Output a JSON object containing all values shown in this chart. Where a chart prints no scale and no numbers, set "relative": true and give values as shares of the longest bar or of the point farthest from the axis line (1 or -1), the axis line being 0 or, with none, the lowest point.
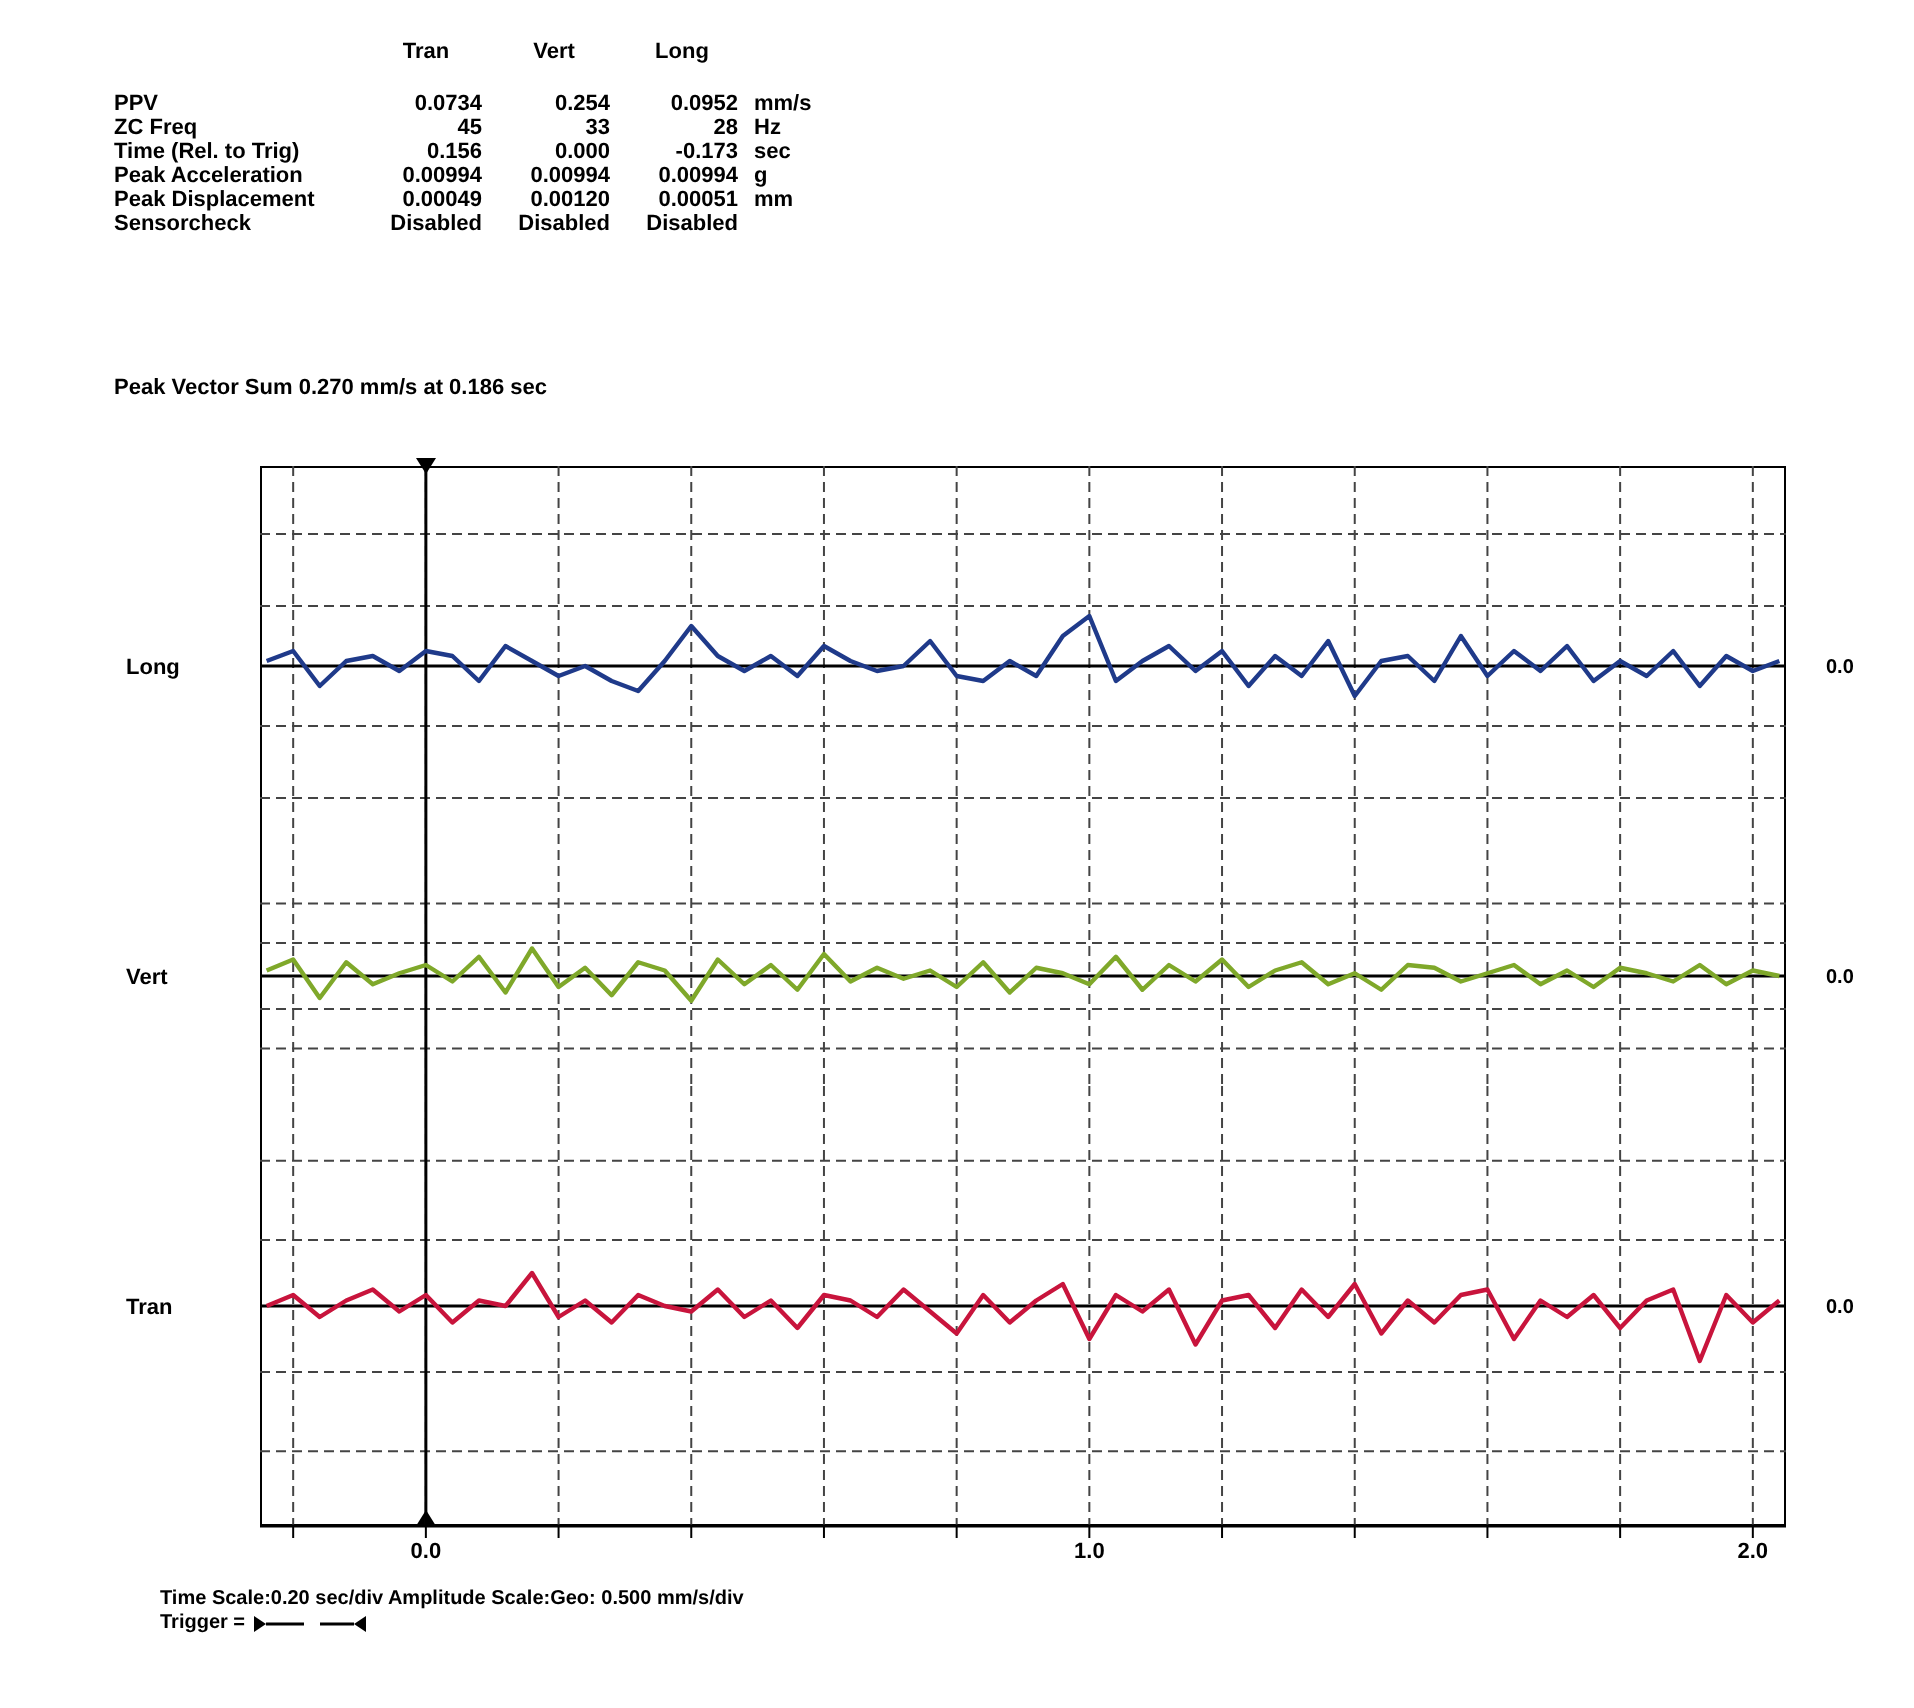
{
  "chart_data": [
    {
      "type": "other",
      "annotations": [
        "Tran",
        "Vert",
        "Long",
        "PPV",
        "0.0734",
        "0.254",
        "0.0952",
        "mm/s",
        "ZC Freq",
        "45",
        "33",
        "28",
        "Hz",
        "Time (Rel. to Trig)",
        "0.156",
        "0.000",
        "-0.173",
        "sec",
        "Peak Acceleration",
        "0.00994",
        "0.00994",
        "0.00994",
        "g",
        "Peak Displacement",
        "0.00049",
        "0.00120",
        "0.00051",
        "mm",
        "Sensorcheck",
        "Disabled",
        "Disabled",
        "Disabled",
        "Peak Vector Sum 0.270 mm/s at 0.186 sec"
      ]
    },
    {
      "type": "line",
      "relative": true,
      "ylabel": "Long",
      "tick_labels": false,
      "grid": true,
      "marker": "none",
      "line_style": "solid",
      "xlim": [
        -0.25,
        2.05
      ],
      "xticks": [
        -0.2,
        0,
        0.2,
        0.4,
        0.6,
        0.8,
        1,
        1.2,
        1.4,
        1.6,
        1.8,
        2
      ],
      "x": [
        -0.24,
        -0.2,
        -0.16,
        -0.12,
        -0.08,
        -0.04,
        0,
        0.04,
        0.08,
        0.12,
        0.16,
        0.2,
        0.24,
        0.28,
        0.32,
        0.36,
        0.4,
        0.44,
        0.48,
        0.52,
        0.56,
        0.6,
        0.64,
        0.68,
        0.72,
        0.76,
        0.8,
        0.84,
        0.88,
        0.92,
        0.96,
        1,
        1.04,
        1.08,
        1.12,
        1.16,
        1.2,
        1.24,
        1.28,
        1.32,
        1.36,
        1.4,
        1.44,
        1.48,
        1.52,
        1.56,
        1.6,
        1.64,
        1.68,
        1.72,
        1.76,
        1.8,
        1.84,
        1.88,
        1.92,
        1.96,
        2,
        2.04
      ],
      "series": [
        {
          "color": "#1f3a8a",
          "values": [
            0.1,
            0.3,
            -0.4,
            0.1,
            0.2,
            -0.1,
            0.3,
            0.2,
            -0.3,
            0.4,
            0.1,
            -0.2,
            0.0,
            -0.3,
            -0.5,
            0.1,
            0.8,
            0.2,
            -0.1,
            0.2,
            -0.2,
            0.4,
            0.1,
            -0.1,
            0.0,
            0.5,
            -0.2,
            -0.3,
            0.1,
            -0.2,
            0.6,
            1.0,
            -0.3,
            0.1,
            0.4,
            -0.1,
            0.3,
            -0.4,
            0.2,
            -0.2,
            0.5,
            -0.6,
            0.1,
            0.2,
            -0.3,
            0.6,
            -0.2,
            0.3,
            -0.1,
            0.4,
            -0.3,
            0.1,
            -0.2,
            0.3,
            -0.4,
            0.2,
            -0.1,
            0.1
          ]
        }
      ],
      "ref_lines": [
        {
          "axis": "y",
          "value": 0,
          "label": "0.0",
          "color": "#000000"
        },
        {
          "axis": "x",
          "value": 0,
          "color": "#000000"
        }
      ]
    },
    {
      "type": "line",
      "relative": true,
      "ylabel": "Vert",
      "tick_labels": false,
      "grid": true,
      "marker": "none",
      "line_style": "solid",
      "xlim": [
        -0.25,
        2.05
      ],
      "xticks": [
        -0.2,
        0,
        0.2,
        0.4,
        0.6,
        0.8,
        1,
        1.2,
        1.4,
        1.6,
        1.8,
        2
      ],
      "x": [
        -0.24,
        -0.2,
        -0.16,
        -0.12,
        -0.08,
        -0.04,
        0,
        0.04,
        0.08,
        0.12,
        0.16,
        0.2,
        0.24,
        0.28,
        0.32,
        0.36,
        0.4,
        0.44,
        0.48,
        0.52,
        0.56,
        0.6,
        0.64,
        0.68,
        0.72,
        0.76,
        0.8,
        0.84,
        0.88,
        0.92,
        0.96,
        1,
        1.04,
        1.08,
        1.12,
        1.16,
        1.2,
        1.24,
        1.28,
        1.32,
        1.36,
        1.4,
        1.44,
        1.48,
        1.52,
        1.56,
        1.6,
        1.64,
        1.68,
        1.72,
        1.76,
        1.8,
        1.84,
        1.88,
        1.92,
        1.96,
        2,
        2.04
      ],
      "series": [
        {
          "color": "#7fa82a",
          "values": [
            0.2,
            0.6,
            -0.8,
            0.5,
            -0.3,
            0.1,
            0.4,
            -0.2,
            0.7,
            -0.6,
            1.0,
            -0.4,
            0.3,
            -0.7,
            0.5,
            0.2,
            -0.9,
            0.6,
            -0.3,
            0.4,
            -0.5,
            0.8,
            -0.2,
            0.3,
            -0.1,
            0.2,
            -0.4,
            0.5,
            -0.6,
            0.3,
            0.1,
            -0.3,
            0.7,
            -0.5,
            0.4,
            -0.2,
            0.6,
            -0.4,
            0.2,
            0.5,
            -0.3,
            0.1,
            -0.5,
            0.4,
            0.3,
            -0.2,
            0.1,
            0.4,
            -0.3,
            0.2,
            -0.4,
            0.3,
            0.1,
            -0.2,
            0.4,
            -0.3,
            0.2,
            0.0
          ]
        }
      ],
      "ref_lines": [
        {
          "axis": "y",
          "value": 0,
          "label": "0.0",
          "color": "#000000"
        },
        {
          "axis": "x",
          "value": 0,
          "color": "#000000"
        }
      ]
    },
    {
      "type": "line",
      "relative": true,
      "ylabel": "Tran",
      "tick_labels": "x",
      "grid": true,
      "marker": "none",
      "line_style": "solid",
      "xlim": [
        -0.25,
        2.05
      ],
      "xticks": [
        {
          "value": -0.2,
          "label": null
        },
        {
          "value": 0,
          "label": "0.0"
        },
        {
          "value": 0.2,
          "label": null
        },
        {
          "value": 0.4,
          "label": null
        },
        {
          "value": 0.6,
          "label": null
        },
        {
          "value": 0.8,
          "label": null
        },
        {
          "value": 1,
          "label": "1.0"
        },
        {
          "value": 1.2,
          "label": null
        },
        {
          "value": 1.4,
          "label": null
        },
        {
          "value": 1.6,
          "label": null
        },
        {
          "value": 1.8,
          "label": null
        },
        {
          "value": 2,
          "label": "2.0"
        }
      ],
      "x": [
        -0.24,
        -0.2,
        -0.16,
        -0.12,
        -0.08,
        -0.04,
        0,
        0.04,
        0.08,
        0.12,
        0.16,
        0.2,
        0.24,
        0.28,
        0.32,
        0.36,
        0.4,
        0.44,
        0.48,
        0.52,
        0.56,
        0.6,
        0.64,
        0.68,
        0.72,
        0.76,
        0.8,
        0.84,
        0.88,
        0.92,
        0.96,
        1,
        1.04,
        1.08,
        1.12,
        1.16,
        1.2,
        1.24,
        1.28,
        1.32,
        1.36,
        1.4,
        1.44,
        1.48,
        1.52,
        1.56,
        1.6,
        1.64,
        1.68,
        1.72,
        1.76,
        1.8,
        1.84,
        1.88,
        1.92,
        1.96,
        2,
        2.04
      ],
      "series": [
        {
          "color": "#c8143c",
          "values": [
            0.0,
            0.2,
            -0.2,
            0.1,
            0.3,
            -0.1,
            0.2,
            -0.3,
            0.1,
            0.0,
            0.6,
            -0.2,
            0.1,
            -0.3,
            0.2,
            0.0,
            -0.1,
            0.3,
            -0.2,
            0.1,
            -0.4,
            0.2,
            0.1,
            -0.2,
            0.3,
            -0.1,
            -0.5,
            0.2,
            -0.3,
            0.1,
            0.4,
            -0.6,
            0.2,
            -0.1,
            0.3,
            -0.7,
            0.1,
            0.2,
            -0.4,
            0.3,
            -0.2,
            0.4,
            -0.5,
            0.1,
            -0.3,
            0.2,
            0.3,
            -0.6,
            0.1,
            -0.2,
            0.2,
            -0.4,
            0.1,
            0.3,
            -1.0,
            0.2,
            -0.3,
            0.1
          ]
        }
      ],
      "ref_lines": [
        {
          "axis": "y",
          "value": 0,
          "label": "0.0",
          "color": "#000000"
        },
        {
          "axis": "x",
          "value": 0,
          "color": "#000000"
        }
      ],
      "annotations": [
        "Time Scale:0.20 sec/div   Amplitude Scale:Geo: 0.500 mm/s/div",
        "Trigger ="
      ]
    }
  ]
}
